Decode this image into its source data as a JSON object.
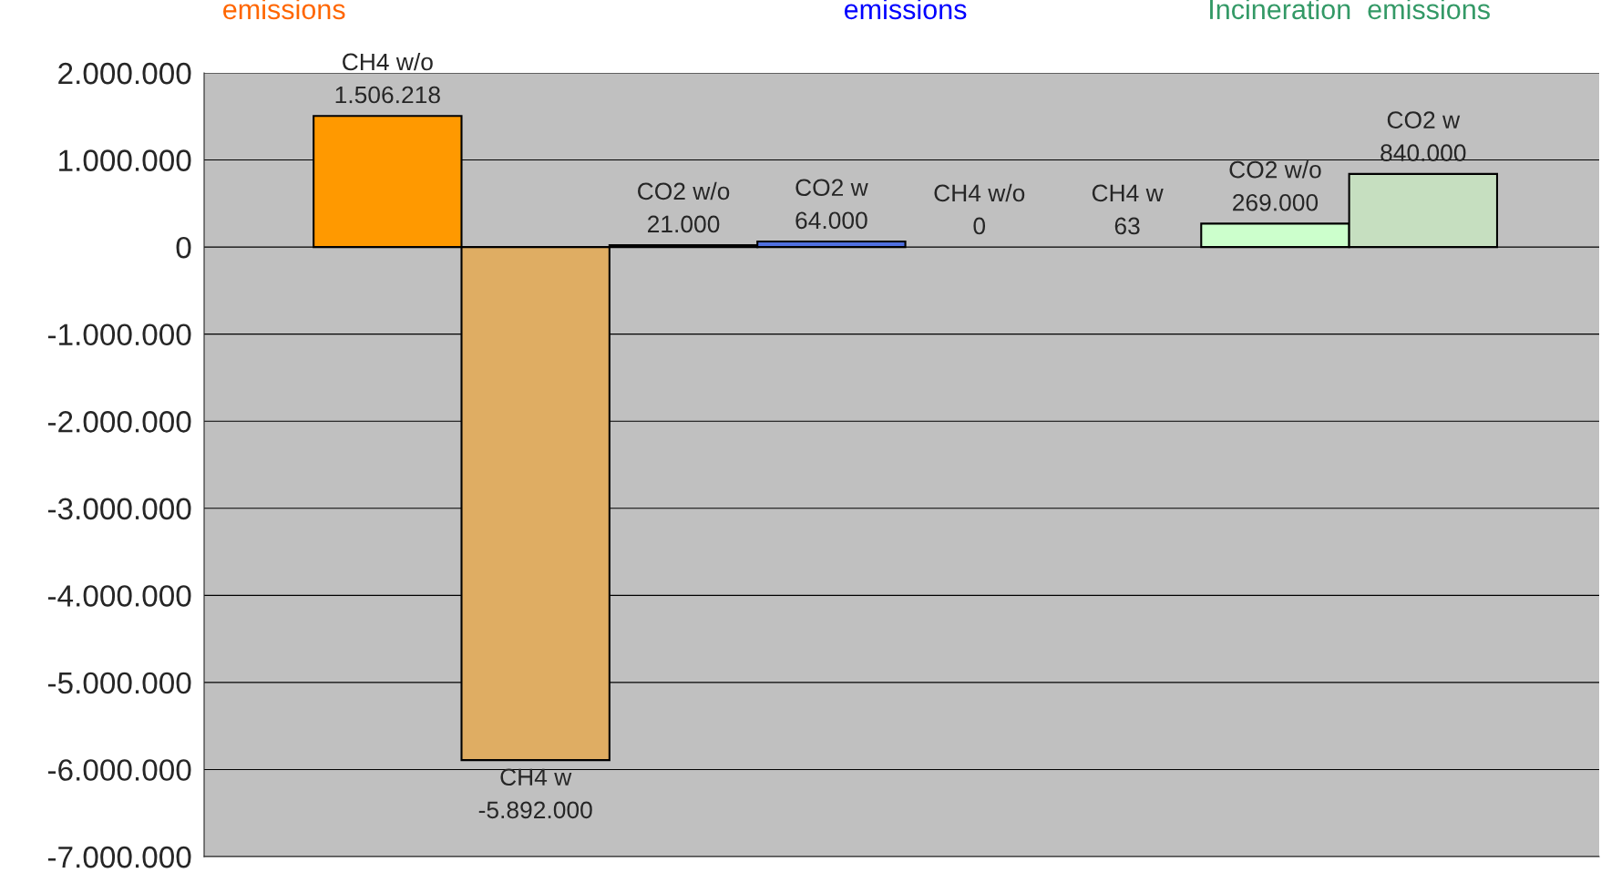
{
  "chart_data": {
    "type": "bar",
    "categories": [
      "CH4 w/o",
      "CH4 w",
      "CO2 w/o",
      "CO2 w",
      "CH4 w/o",
      "CH4 w",
      "CO2 w/o",
      "CO2 w"
    ],
    "values": [
      1506218,
      -5892000,
      21000,
      64000,
      0,
      63,
      269000,
      840000
    ],
    "colors": [
      "#ff9900",
      "#dfad63",
      "#5f7fe8",
      "#4f6fdf",
      null,
      null,
      "#ccffcc",
      "#c6dfc0"
    ],
    "value_labels": [
      "1.506.218",
      "-5.892.000",
      "21.000",
      "64.000",
      "0",
      "63",
      "269.000",
      "840.000"
    ],
    "annotations": [
      "emissions",
      "emissions",
      "Incineration  emissions"
    ],
    "ylim": [
      -7000000,
      2000000
    ],
    "yticks": [
      {
        "value": -7000000,
        "label": "-7.000.000"
      },
      {
        "value": -6000000,
        "label": "-6.000.000"
      },
      {
        "value": -5000000,
        "label": "-5.000.000"
      },
      {
        "value": -4000000,
        "label": "-4.000.000"
      },
      {
        "value": -3000000,
        "label": "-3.000.000"
      },
      {
        "value": -2000000,
        "label": "-2.000.000"
      },
      {
        "value": -1000000,
        "label": "-1.000.000"
      },
      {
        "value": 0,
        "label": "0"
      },
      {
        "value": 1000000,
        "label": "1.000.000"
      },
      {
        "value": 2000000,
        "label": "2.000.000"
      }
    ],
    "grid": "y",
    "tick_labels": "y"
  }
}
